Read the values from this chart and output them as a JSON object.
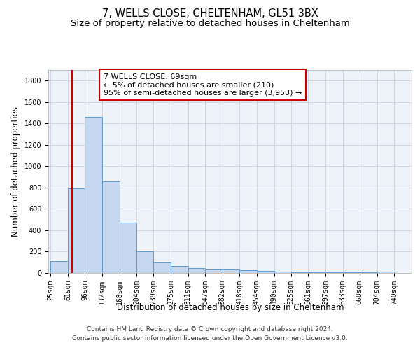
{
  "title1": "7, WELLS CLOSE, CHELTENHAM, GL51 3BX",
  "title2": "Size of property relative to detached houses in Cheltenham",
  "xlabel": "Distribution of detached houses by size in Cheltenham",
  "ylabel": "Number of detached properties",
  "annotation_line1": "7 WELLS CLOSE: 69sqm",
  "annotation_line2": "← 5% of detached houses are smaller (210)",
  "annotation_line3": "95% of semi-detached houses are larger (3,953) →",
  "property_size_sqm": 69,
  "bar_left_edges": [
    25,
    61,
    96,
    132,
    168,
    204,
    239,
    275,
    311,
    347,
    382,
    418,
    454,
    490,
    525,
    561,
    597,
    633,
    668,
    704
  ],
  "bar_widths": [
    36,
    35,
    36,
    36,
    36,
    35,
    36,
    36,
    36,
    35,
    36,
    36,
    36,
    35,
    36,
    36,
    36,
    35,
    36,
    36
  ],
  "bar_heights": [
    110,
    790,
    1460,
    860,
    470,
    200,
    100,
    65,
    45,
    35,
    30,
    25,
    20,
    10,
    5,
    5,
    5,
    5,
    5,
    10
  ],
  "bar_color": "#c5d8f0",
  "bar_edge_color": "#5b9bd5",
  "vline_x": 69,
  "vline_color": "#cc0000",
  "ylim": [
    0,
    1900
  ],
  "yticks": [
    0,
    200,
    400,
    600,
    800,
    1000,
    1200,
    1400,
    1600,
    1800
  ],
  "xtick_labels": [
    "25sqm",
    "61sqm",
    "96sqm",
    "132sqm",
    "168sqm",
    "204sqm",
    "239sqm",
    "275sqm",
    "311sqm",
    "347sqm",
    "382sqm",
    "418sqm",
    "454sqm",
    "490sqm",
    "525sqm",
    "561sqm",
    "597sqm",
    "633sqm",
    "668sqm",
    "704sqm",
    "740sqm"
  ],
  "xtick_positions": [
    25,
    61,
    96,
    132,
    168,
    204,
    239,
    275,
    311,
    347,
    382,
    418,
    454,
    490,
    525,
    561,
    597,
    633,
    668,
    704,
    740
  ],
  "grid_color": "#d0d8e8",
  "background_color": "#eef3fa",
  "annotation_box_color": "#ffffff",
  "annotation_box_edge": "#cc0000",
  "footer1": "Contains HM Land Registry data © Crown copyright and database right 2024.",
  "footer2": "Contains public sector information licensed under the Open Government Licence v3.0.",
  "title_fontsize": 10.5,
  "subtitle_fontsize": 9.5,
  "axis_label_fontsize": 8.5,
  "tick_fontsize": 7,
  "annotation_fontsize": 8,
  "footer_fontsize": 6.5
}
